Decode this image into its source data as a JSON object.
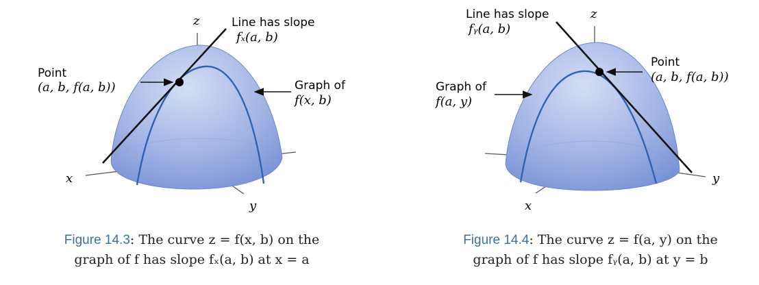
{
  "figure_left": {
    "axis_z": "z",
    "axis_x": "x",
    "axis_y": "y",
    "slope_title": "Line has slope",
    "slope_expr": "fₓ(a, b)",
    "point_title": "Point",
    "point_expr": "(a, b, f(a, b))",
    "graph_title": "Graph of",
    "graph_expr": "f(x, b)",
    "caption_label": "Figure 14.3",
    "caption_line1": ": The curve z = f(x, b) on the",
    "caption_line2": "graph of f has slope fₓ(a, b) at x = a"
  },
  "figure_right": {
    "axis_z": "z",
    "axis_x": "x",
    "axis_y": "y",
    "slope_title": "Line has slope",
    "slope_expr": "fᵧ(a, b)",
    "point_title": "Point",
    "point_expr": "(a, b, f(a, b))",
    "graph_title": "Graph of",
    "graph_expr": "f(a, y)",
    "caption_label": "Figure 14.4",
    "caption_line1": ": The curve z = f(a, y) on the",
    "caption_line2": "graph of f has slope fᵧ(a, b) at y = b"
  },
  "colors": {
    "surface_top": "#c9d6f1",
    "surface_bottom": "#7c97d8",
    "curve": "#2f62b0",
    "line": "#111111",
    "caption_label": "#3a6fa8"
  }
}
